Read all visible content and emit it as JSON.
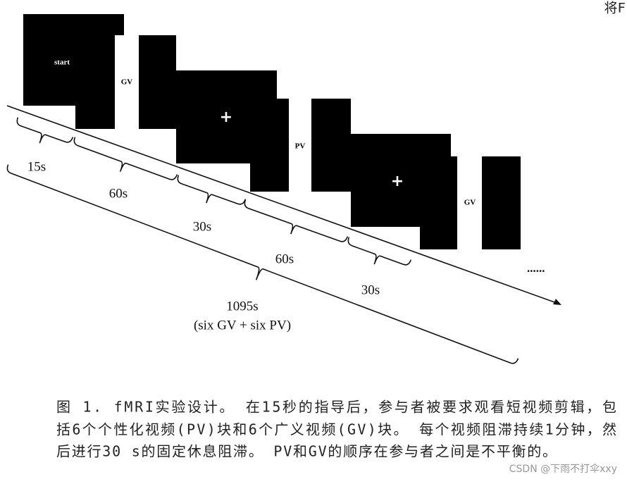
{
  "header_fragment": "将F",
  "frames": [
    {
      "label": "start"
    },
    {
      "label": "GV"
    },
    {
      "label": "+"
    },
    {
      "label": "PV"
    },
    {
      "label": "+"
    },
    {
      "label": "GV"
    }
  ],
  "ellipsis": "......",
  "durations": [
    "15s",
    "60s",
    "30s",
    "60s",
    "30s"
  ],
  "total": {
    "duration": "1095s",
    "composition": "(six GV + six PV)"
  },
  "caption": {
    "lines": [
      "图 1. fMRI实验设计。 在15秒的指导后，参与者被要求观看短视频剪辑，包",
      "括6个个性化视频(PV)块和6个广义视频(GV)块。 每个视频阻滞持续1分钟，然",
      "后进行30 s的固定休息阻滞。 PV和GV的顺序在参与者之间是不平衡的。"
    ]
  },
  "watermark": "CSDN @下雨不打伞xxy"
}
